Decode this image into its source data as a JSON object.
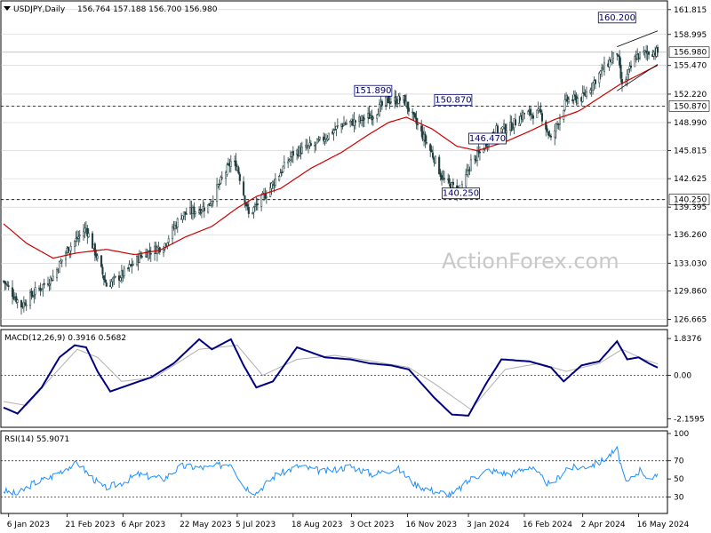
{
  "chart_data": [
    {
      "type": "candlestick",
      "title": "USDJPY,Daily",
      "ohlc_header": "156.764 157.188 156.700 156.980",
      "watermark": "ActionForex.com",
      "y_ticks": [
        "161.815",
        "158.995",
        "156.980",
        "155.470",
        "152.220",
        "150.870",
        "148.990",
        "145.815",
        "142.625",
        "140.250",
        "139.395",
        "136.260",
        "133.030",
        "129.860",
        "126.665"
      ],
      "x_ticks": [
        "6 Jan 2023",
        "21 Feb 2023",
        "6 Apr 2023",
        "22 May 2023",
        "5 Jul 2023",
        "18 Aug 2023",
        "3 Oct 2023",
        "16 Nov 2023",
        "3 Jan 2024",
        "16 Feb 2024",
        "2 Apr 2024",
        "16 May 2024"
      ],
      "ylim": [
        126.0,
        162.5
      ],
      "last_price": 156.98,
      "horizontal_levels": [
        150.87,
        140.25
      ],
      "annotations": [
        {
          "text": "151.890",
          "value": 151.89,
          "date": "2023-10-20"
        },
        {
          "text": "150.870",
          "value": 150.87,
          "date": "2023-12-22"
        },
        {
          "text": "146.470",
          "value": 146.47,
          "date": "2024-01-18"
        },
        {
          "text": "140.250",
          "value": 140.25,
          "date": "2023-12-28"
        },
        {
          "text": "160.200",
          "value": 160.2,
          "date": "2024-04-29"
        }
      ],
      "price_path": [
        [
          "2023-01-02",
          131.0
        ],
        [
          "2023-01-16",
          128.2
        ],
        [
          "2023-01-27",
          129.8
        ],
        [
          "2023-02-10",
          131.5
        ],
        [
          "2023-02-21",
          134.5
        ],
        [
          "2023-03-08",
          137.0
        ],
        [
          "2023-03-17",
          133.5
        ],
        [
          "2023-03-24",
          130.5
        ],
        [
          "2023-04-06",
          131.8
        ],
        [
          "2023-04-21",
          134.0
        ],
        [
          "2023-05-08",
          135.0
        ],
        [
          "2023-05-22",
          138.5
        ],
        [
          "2023-06-12",
          139.5
        ],
        [
          "2023-06-30",
          144.5
        ],
        [
          "2023-07-05",
          144.0
        ],
        [
          "2023-07-14",
          138.5
        ],
        [
          "2023-07-28",
          141.0
        ],
        [
          "2023-08-18",
          145.5
        ],
        [
          "2023-09-05",
          146.5
        ],
        [
          "2023-09-25",
          148.8
        ],
        [
          "2023-10-09",
          149.2
        ],
        [
          "2023-10-20",
          149.9
        ],
        [
          "2023-10-31",
          151.5
        ],
        [
          "2023-11-13",
          151.6
        ],
        [
          "2023-11-28",
          147.5
        ],
        [
          "2023-12-07",
          145.0
        ],
        [
          "2023-12-14",
          142.5
        ],
        [
          "2023-12-28",
          141.0
        ],
        [
          "2024-01-05",
          144.5
        ],
        [
          "2024-01-12",
          145.5
        ],
        [
          "2024-01-22",
          148.0
        ],
        [
          "2024-02-05",
          148.5
        ],
        [
          "2024-02-16",
          150.0
        ],
        [
          "2024-02-29",
          150.0
        ],
        [
          "2024-03-08",
          147.0
        ],
        [
          "2024-03-20",
          151.5
        ],
        [
          "2024-04-02",
          151.8
        ],
        [
          "2024-04-15",
          154.5
        ],
        [
          "2024-04-29",
          157.0
        ],
        [
          "2024-05-03",
          153.0
        ],
        [
          "2024-05-14",
          156.5
        ],
        [
          "2024-05-24",
          157.0
        ],
        [
          "2024-05-31",
          156.98
        ]
      ],
      "ma_path": [
        [
          "2023-01-02",
          137.5
        ],
        [
          "2023-01-20",
          135.3
        ],
        [
          "2023-02-10",
          133.6
        ],
        [
          "2023-03-01",
          134.2
        ],
        [
          "2023-03-24",
          134.6
        ],
        [
          "2023-04-15",
          134.0
        ],
        [
          "2023-05-05",
          134.5
        ],
        [
          "2023-05-25",
          136.0
        ],
        [
          "2023-06-15",
          137.2
        ],
        [
          "2023-07-05",
          139.3
        ],
        [
          "2023-07-20",
          140.6
        ],
        [
          "2023-08-08",
          141.5
        ],
        [
          "2023-09-01",
          143.8
        ],
        [
          "2023-09-25",
          145.6
        ],
        [
          "2023-10-15",
          147.5
        ],
        [
          "2023-11-01",
          149.0
        ],
        [
          "2023-11-15",
          149.6
        ],
        [
          "2023-12-05",
          148.3
        ],
        [
          "2023-12-25",
          146.3
        ],
        [
          "2024-01-10",
          145.8
        ],
        [
          "2024-02-01",
          146.8
        ],
        [
          "2024-02-20",
          148.0
        ],
        [
          "2024-03-10",
          149.3
        ],
        [
          "2024-03-30",
          150.3
        ],
        [
          "2024-04-15",
          151.8
        ],
        [
          "2024-05-01",
          153.3
        ],
        [
          "2024-05-31",
          155.5
        ]
      ],
      "channel": [
        {
          "from": [
            "2024-04-29",
            157.6
          ],
          "to": [
            "2024-05-31",
            159.4
          ]
        },
        {
          "from": [
            "2024-04-29",
            152.6
          ],
          "to": [
            "2024-05-31",
            155.6
          ]
        }
      ],
      "series": [
        {
          "name": "USDJPY Daily"
        },
        {
          "name": "MA",
          "color": "#cc0000"
        }
      ],
      "colors": {
        "candle_up": "#ffffff",
        "candle_down": "#1f3d3d",
        "candle_border": "#1f3d3d",
        "ma": "#cc0000",
        "label_border": "#000066",
        "grid": "#cccccc"
      }
    },
    {
      "type": "line",
      "title": "MACD(12,26,9) 0.3916 0.5682",
      "y_ticks": [
        "1.8376",
        "0.00",
        "-2.1595"
      ],
      "ylim": [
        -2.45,
        2.15
      ],
      "macd_path": [
        [
          "2023-01-02",
          -1.6
        ],
        [
          "2023-01-13",
          -1.9
        ],
        [
          "2023-02-01",
          -0.6
        ],
        [
          "2023-02-15",
          0.9
        ],
        [
          "2023-02-27",
          1.5
        ],
        [
          "2023-03-08",
          1.4
        ],
        [
          "2023-03-17",
          0.2
        ],
        [
          "2023-03-27",
          -0.8
        ],
        [
          "2023-04-14",
          -0.4
        ],
        [
          "2023-04-28",
          -0.1
        ],
        [
          "2023-05-16",
          0.6
        ],
        [
          "2023-06-05",
          1.8
        ],
        [
          "2023-06-15",
          1.3
        ],
        [
          "2023-06-30",
          1.8
        ],
        [
          "2023-07-10",
          0.5
        ],
        [
          "2023-07-20",
          -0.6
        ],
        [
          "2023-08-02",
          -0.3
        ],
        [
          "2023-08-21",
          1.4
        ],
        [
          "2023-09-12",
          0.9
        ],
        [
          "2023-10-02",
          0.8
        ],
        [
          "2023-10-17",
          0.6
        ],
        [
          "2023-11-03",
          0.5
        ],
        [
          "2023-11-17",
          0.3
        ],
        [
          "2023-12-07",
          -1.1
        ],
        [
          "2023-12-21",
          -1.95
        ],
        [
          "2024-01-03",
          -2.0
        ],
        [
          "2024-01-17",
          -0.4
        ],
        [
          "2024-01-29",
          0.8
        ],
        [
          "2024-02-20",
          0.7
        ],
        [
          "2024-03-08",
          0.4
        ],
        [
          "2024-03-18",
          -0.3
        ],
        [
          "2024-04-01",
          0.5
        ],
        [
          "2024-04-15",
          0.7
        ],
        [
          "2024-04-29",
          1.7
        ],
        [
          "2024-05-07",
          0.8
        ],
        [
          "2024-05-16",
          0.9
        ],
        [
          "2024-05-24",
          0.6
        ],
        [
          "2024-05-31",
          0.39
        ]
      ],
      "signal_path": [
        [
          "2023-01-02",
          -1.3
        ],
        [
          "2023-01-20",
          -1.5
        ],
        [
          "2023-02-10",
          0.0
        ],
        [
          "2023-03-01",
          1.3
        ],
        [
          "2023-03-17",
          0.9
        ],
        [
          "2023-04-05",
          -0.3
        ],
        [
          "2023-05-01",
          -0.1
        ],
        [
          "2023-06-05",
          1.3
        ],
        [
          "2023-07-05",
          1.5
        ],
        [
          "2023-07-25",
          0.0
        ],
        [
          "2023-08-21",
          0.8
        ],
        [
          "2023-09-20",
          1.0
        ],
        [
          "2023-10-20",
          0.7
        ],
        [
          "2023-11-17",
          0.4
        ],
        [
          "2023-12-07",
          -0.4
        ],
        [
          "2024-01-05",
          -1.7
        ],
        [
          "2024-02-01",
          0.3
        ],
        [
          "2024-02-28",
          0.6
        ],
        [
          "2024-03-20",
          0.2
        ],
        [
          "2024-04-15",
          0.6
        ],
        [
          "2024-05-03",
          1.3
        ],
        [
          "2024-05-20",
          0.8
        ],
        [
          "2024-05-31",
          0.57
        ]
      ],
      "series": [
        {
          "name": "MACD",
          "color": "#000080"
        },
        {
          "name": "Signal",
          "color": "#b0b0b0"
        }
      ]
    },
    {
      "type": "line",
      "title": "RSI(14) 55.9071",
      "y_ticks": [
        "100",
        "70",
        "50",
        "30"
      ],
      "levels": [
        70,
        30
      ],
      "ylim": [
        13,
        100
      ],
      "rsi_path": [
        [
          "2023-01-02",
          37
        ],
        [
          "2023-01-13",
          33
        ],
        [
          "2023-01-25",
          45
        ],
        [
          "2023-02-08",
          52
        ],
        [
          "2023-02-20",
          62
        ],
        [
          "2023-03-02",
          67
        ],
        [
          "2023-03-10",
          55
        ],
        [
          "2023-03-22",
          40
        ],
        [
          "2023-04-04",
          45
        ],
        [
          "2023-04-18",
          55
        ],
        [
          "2023-05-08",
          50
        ],
        [
          "2023-05-22",
          64
        ],
        [
          "2023-06-12",
          62
        ],
        [
          "2023-06-30",
          68
        ],
        [
          "2023-07-10",
          42
        ],
        [
          "2023-07-20",
          35
        ],
        [
          "2023-08-04",
          54
        ],
        [
          "2023-08-22",
          64
        ],
        [
          "2023-09-12",
          58
        ],
        [
          "2023-10-02",
          64
        ],
        [
          "2023-10-20",
          55
        ],
        [
          "2023-11-08",
          62
        ],
        [
          "2023-11-22",
          44
        ],
        [
          "2023-12-08",
          36
        ],
        [
          "2023-12-22",
          33
        ],
        [
          "2024-01-05",
          50
        ],
        [
          "2024-01-19",
          60
        ],
        [
          "2024-02-05",
          55
        ],
        [
          "2024-02-20",
          64
        ],
        [
          "2024-03-08",
          42
        ],
        [
          "2024-03-20",
          62
        ],
        [
          "2024-04-02",
          63
        ],
        [
          "2024-04-15",
          68
        ],
        [
          "2024-04-29",
          82
        ],
        [
          "2024-05-06",
          44
        ],
        [
          "2024-05-17",
          60
        ],
        [
          "2024-05-27",
          47
        ],
        [
          "2024-05-31",
          56
        ]
      ],
      "series": [
        {
          "name": "RSI(14)",
          "color": "#1e90ff"
        }
      ]
    }
  ]
}
